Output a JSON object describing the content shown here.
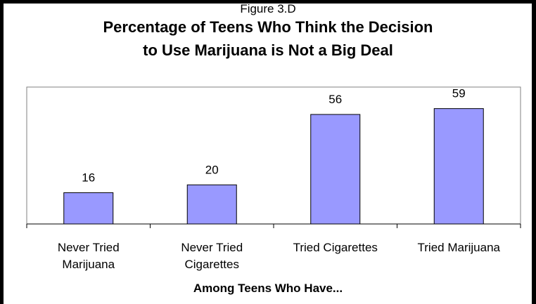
{
  "figure_label": "Figure 3.D",
  "chart_data": {
    "type": "bar",
    "title_lines": [
      "Percentage of Teens Who Think the Decision",
      "to Use Marijuana is Not a Big Deal"
    ],
    "categories": [
      [
        "Never Tried",
        "Marijuana"
      ],
      [
        "Never Tried",
        "Cigarettes"
      ],
      [
        "Tried Cigarettes"
      ],
      [
        "Tried Marijuana"
      ]
    ],
    "values": [
      16,
      20,
      56,
      59
    ],
    "xlabel": "Among Teens Who Have...",
    "ylabel": "",
    "ylim": [
      0,
      70
    ],
    "bar_color": "#9999ff",
    "grid": false,
    "legend": "none"
  }
}
